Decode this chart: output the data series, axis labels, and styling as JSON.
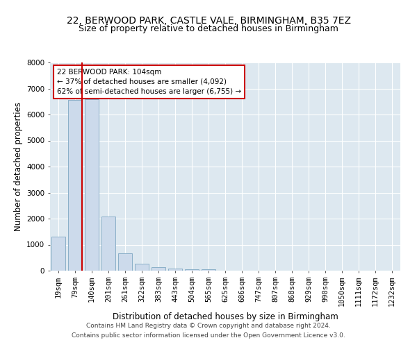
{
  "title1": "22, BERWOOD PARK, CASTLE VALE, BIRMINGHAM, B35 7EZ",
  "title2": "Size of property relative to detached houses in Birmingham",
  "xlabel": "Distribution of detached houses by size in Birmingham",
  "ylabel": "Number of detached properties",
  "footer1": "Contains HM Land Registry data © Crown copyright and database right 2024.",
  "footer2": "Contains public sector information licensed under the Open Government Licence v3.0.",
  "categories": [
    "19sqm",
    "79sqm",
    "140sqm",
    "201sqm",
    "261sqm",
    "322sqm",
    "383sqm",
    "443sqm",
    "504sqm",
    "565sqm",
    "625sqm",
    "686sqm",
    "747sqm",
    "807sqm",
    "868sqm",
    "929sqm",
    "990sqm",
    "1050sqm",
    "1111sqm",
    "1172sqm",
    "1232sqm"
  ],
  "values": [
    1300,
    6550,
    6600,
    2080,
    680,
    270,
    130,
    80,
    50,
    55,
    0,
    0,
    0,
    0,
    0,
    0,
    0,
    0,
    0,
    0,
    0
  ],
  "bar_color": "#ccdaeb",
  "bar_edge_color": "#8aafc8",
  "vline_color": "#cc0000",
  "vline_x": 1.42,
  "annotation_text": "22 BERWOOD PARK: 104sqm\n← 37% of detached houses are smaller (4,092)\n62% of semi-detached houses are larger (6,755) →",
  "annotation_box_facecolor": "#ffffff",
  "annotation_box_edgecolor": "#cc0000",
  "ylim": [
    0,
    8000
  ],
  "yticks": [
    0,
    1000,
    2000,
    3000,
    4000,
    5000,
    6000,
    7000,
    8000
  ],
  "background_color": "#dde8f0",
  "grid_color": "#ffffff",
  "title1_fontsize": 10,
  "title2_fontsize": 9,
  "axis_label_fontsize": 8.5,
  "tick_fontsize": 7.5,
  "footer_fontsize": 6.5
}
